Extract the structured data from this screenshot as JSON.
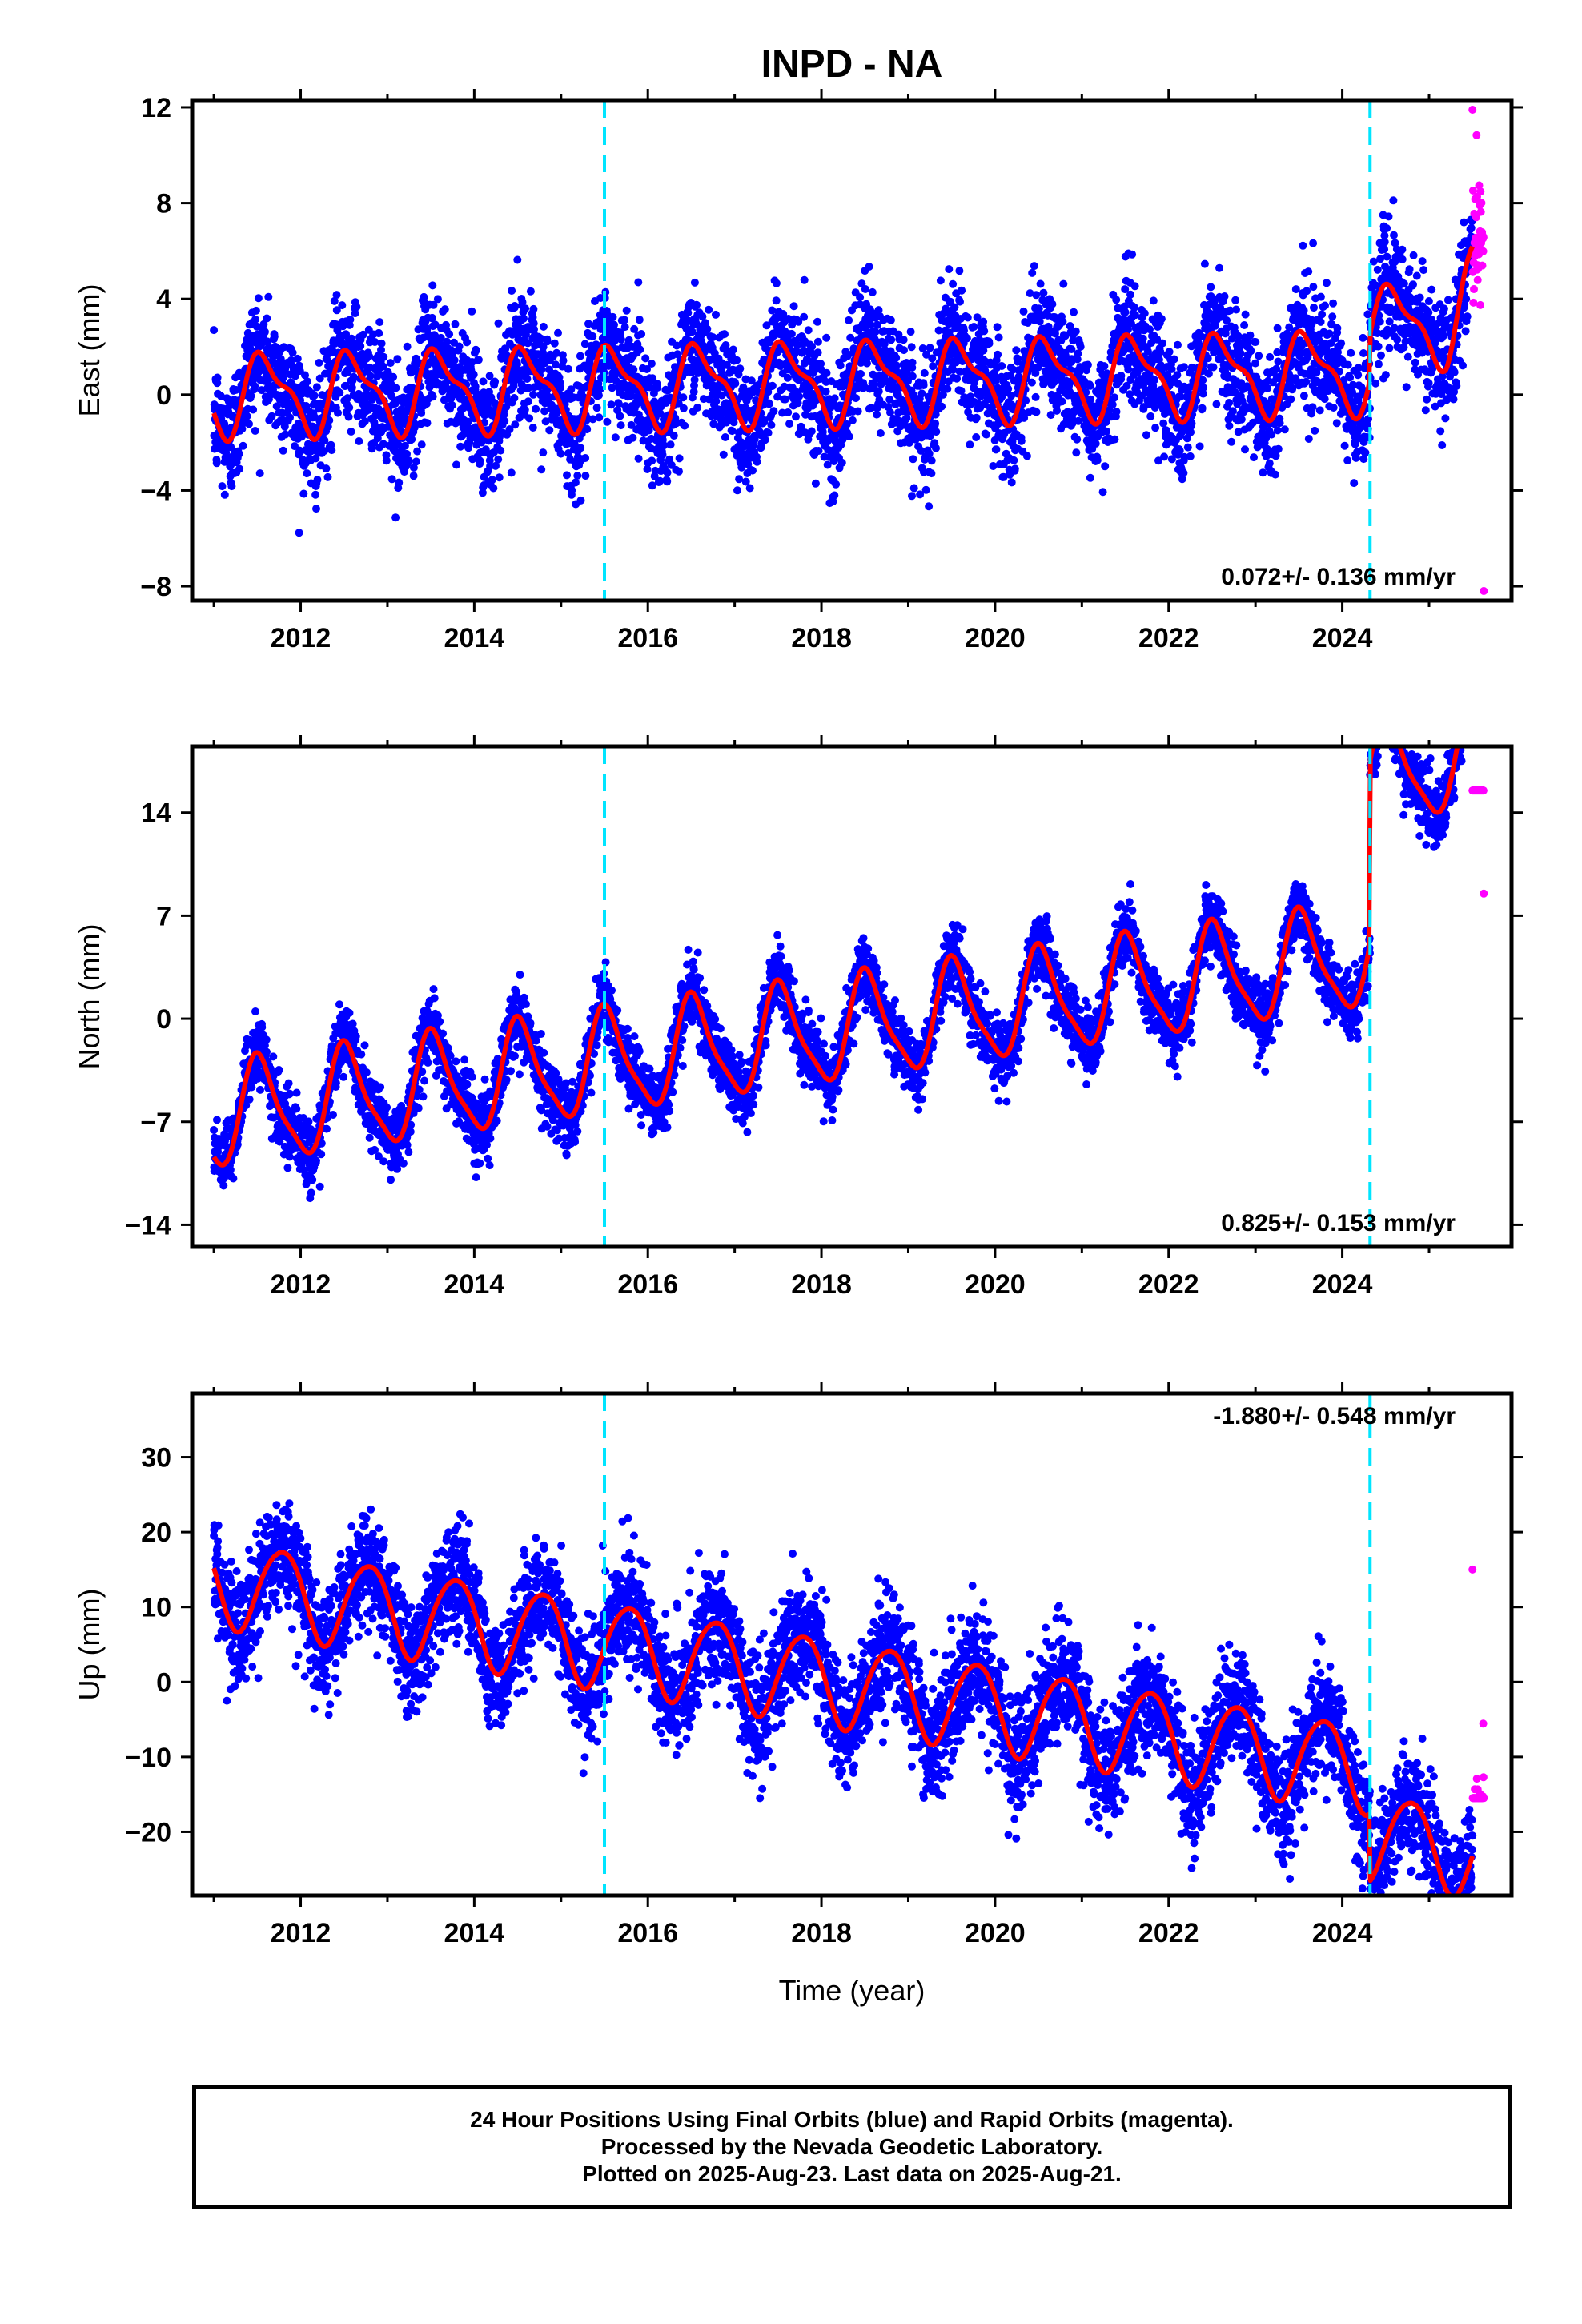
{
  "chart_data": {
    "type": "scatter",
    "title": "INPD - NA",
    "xlabel": "Time (year)",
    "xlim": [
      2010.75,
      2025.95
    ],
    "x_ticks": [
      2012,
      2014,
      2016,
      2018,
      2020,
      2022,
      2024
    ],
    "x_tick_labels": [
      "2012",
      "2014",
      "2016",
      "2018",
      "2020",
      "2022",
      "2024"
    ],
    "data_start": 2011.0,
    "final_end": 2025.5,
    "rapid_end": 2025.63,
    "steps": [
      2015.5,
      2024.32
    ],
    "colors": {
      "final": "#0000ff",
      "rapid": "#ff00ff",
      "model": "#ff0000",
      "step": "#00e5ff",
      "frame": "#000000"
    },
    "legend": {
      "final_orbits": "Final Orbits (blue)",
      "rapid_orbits": "Rapid Orbits (magenta)",
      "model": "red line",
      "steps": "dashed cyan lines"
    },
    "panels": [
      {
        "name": "east",
        "ylabel": "East (mm)",
        "ylim": [
          -8.6,
          12.3
        ],
        "y_ticks": [
          -8,
          -4,
          0,
          4,
          8,
          12
        ],
        "y_tick_labels": [
          "−8",
          "−4",
          "0",
          "4",
          "8",
          "12"
        ],
        "rate_label": "0.072+/- 0.136 mm/yr",
        "rate_position": "bottom-right",
        "model": {
          "rate": 0.072,
          "amp1": 1.55,
          "phase1": 0.6,
          "amp2": 0.6,
          "phase2": 0.45,
          "offsets": [
            {
              "t0": 2011.0,
              "v": 0.0
            },
            {
              "t0": 2024.32,
              "v": 1.9
            }
          ],
          "extra": {
            "t0": 2025.2,
            "rate": 5.0
          }
        },
        "noise": 1.25,
        "rapid_range": [
          -8.2,
          11.9
        ]
      },
      {
        "name": "north",
        "ylabel": "North (mm)",
        "ylim": [
          -15.5,
          18.5
        ],
        "y_ticks": [
          -14,
          -7,
          0,
          7,
          14
        ],
        "y_tick_labels": [
          "−14",
          "−7",
          "0",
          "7",
          "14"
        ],
        "rate_label": "0.825+/- 0.153 mm/yr",
        "rate_position": "bottom-right",
        "model": {
          "rate": 0.825,
          "amp1": 3.4,
          "phase1": 0.53,
          "amp2": 0.8,
          "phase2": 0.45,
          "offsets": [
            {
              "t0": 2011.0,
              "v": -6.7
            },
            {
              "t0": 2024.32,
              "v": 5.7
            }
          ],
          "extra": null
        },
        "noise": 1.1,
        "rapid_range": [
          8.5,
          15.5
        ]
      },
      {
        "name": "up",
        "ylabel": "Up (mm)",
        "ylim": [
          -28.5,
          38.5
        ],
        "y_ticks": [
          -20,
          -10,
          0,
          10,
          20,
          30
        ],
        "y_tick_labels": [
          "−20",
          "−10",
          "0",
          "10",
          "20",
          "30"
        ],
        "rate_label": "-1.880+/- 0.548 mm/yr",
        "rate_position": "top-right",
        "model": {
          "rate": -1.88,
          "amp1": 5.8,
          "phase1": 0.78,
          "amp2": 0.6,
          "phase2": 0.5,
          "offsets": [
            {
              "t0": 2011.0,
              "v": 13.5
            },
            {
              "t0": 2024.32,
              "v": 4.5
            }
          ],
          "extra": null
        },
        "noise": 3.8,
        "rapid_range": [
          -15.5,
          15.0
        ]
      }
    ]
  },
  "caption": {
    "line1": "24 Hour Positions Using Final Orbits (blue) and Rapid Orbits (magenta).",
    "line2": "Processed by the Nevada Geodetic Laboratory.",
    "line3": "Plotted on 2025-Aug-23. Last data on 2025-Aug-21."
  }
}
